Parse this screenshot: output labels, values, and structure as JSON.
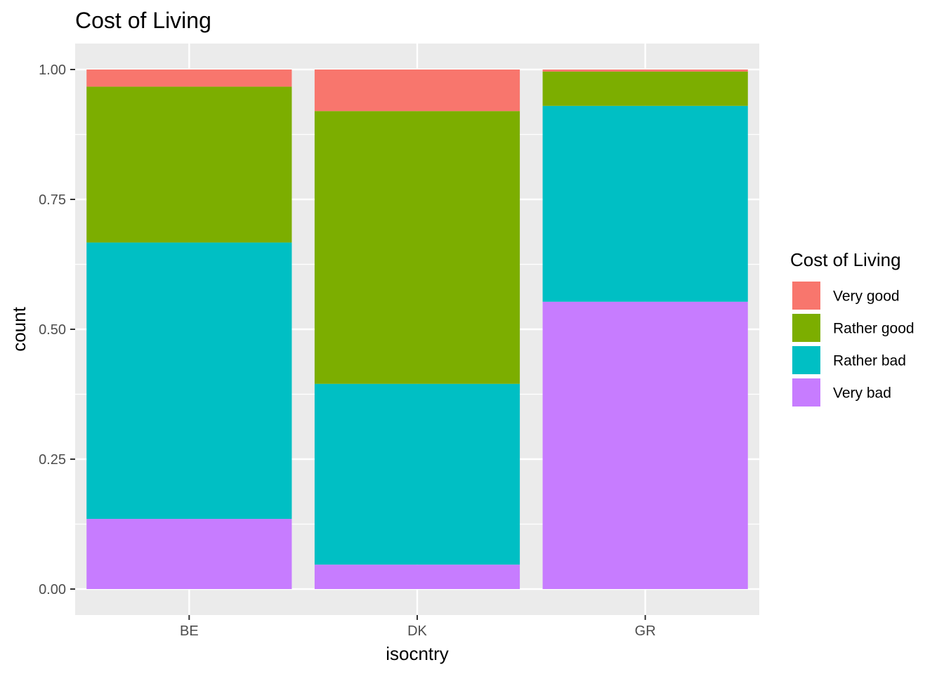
{
  "chart_data": {
    "type": "bar",
    "stacked": true,
    "title": "Cost of Living",
    "xlabel": "isocntry",
    "ylabel": "count",
    "categories": [
      "BE",
      "DK",
      "GR"
    ],
    "ylim": [
      0,
      1
    ],
    "yticks": [
      "0.00",
      "0.25",
      "0.50",
      "0.75",
      "1.00"
    ],
    "grid": true,
    "legend": {
      "title": "Cost of Living",
      "position": "right"
    },
    "series": [
      {
        "name": "Very good",
        "color": "#F8766D",
        "values": [
          0.033,
          0.08,
          0.004
        ]
      },
      {
        "name": "Rather good",
        "color": "#7CAE00",
        "values": [
          0.3,
          0.525,
          0.066
        ]
      },
      {
        "name": "Rather bad",
        "color": "#00BFC4",
        "values": [
          0.532,
          0.348,
          0.377
        ]
      },
      {
        "name": "Very bad",
        "color": "#C77CFF",
        "values": [
          0.135,
          0.047,
          0.553
        ]
      }
    ]
  }
}
